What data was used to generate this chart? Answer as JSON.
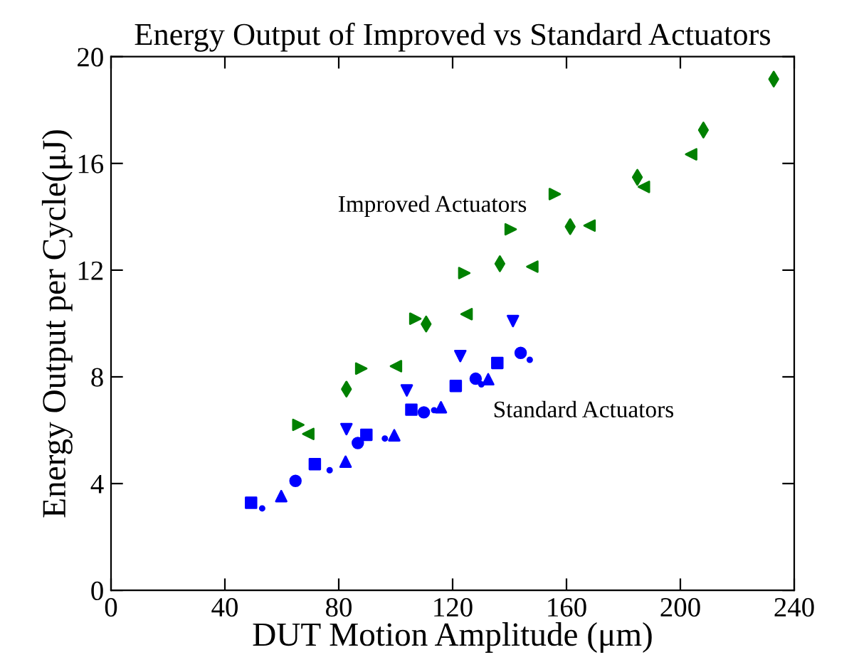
{
  "chart_data": {
    "type": "scatter",
    "title": "Energy Output of Improved vs Standard Actuators",
    "xlabel": "DUT Motion Amplitude (μm)",
    "ylabel": "Energy Output per Cycle(μJ)",
    "xlim": [
      0,
      240
    ],
    "xticks": [
      0,
      40,
      80,
      120,
      160,
      200,
      240
    ],
    "ylim": [
      0,
      20
    ],
    "yticks": [
      0,
      4,
      8,
      12,
      16,
      20
    ],
    "grid": false,
    "legend": false,
    "series": [
      {
        "color": "#0000ff",
        "marker": "square",
        "x": [
          49.2,
          71.6,
          89.7,
          105.5,
          121.1,
          135.7
        ],
        "values": [
          3.28,
          4.73,
          5.83,
          6.77,
          7.66,
          8.52
        ]
      },
      {
        "color": "#0000ff",
        "marker": "point",
        "x": [
          53.1,
          76.8,
          96.2,
          113.5,
          130.1,
          147.1
        ],
        "values": [
          3.07,
          4.5,
          5.69,
          6.75,
          7.72,
          8.64
        ]
      },
      {
        "color": "#0000ff",
        "marker": "triangle",
        "x": [
          59.8,
          82.4,
          99.5,
          115.9,
          132.5
        ],
        "values": [
          3.53,
          4.82,
          5.81,
          6.86,
          7.91
        ]
      },
      {
        "color": "#0000ff",
        "marker": "circle",
        "x": [
          64.8,
          86.7,
          109.9,
          128.1,
          143.9
        ],
        "values": [
          4.1,
          5.52,
          6.67,
          7.93,
          8.9
        ]
      },
      {
        "color": "#0000ff",
        "marker": "triangle_down",
        "x": [
          82.7,
          103.9,
          122.7,
          141.2
        ],
        "values": [
          6.04,
          7.49,
          8.78,
          10.09
        ]
      },
      {
        "color": "#008000",
        "marker": "triangle_right",
        "x": [
          65.8,
          87.9,
          106.9,
          124.1,
          140.4,
          155.9
        ],
        "values": [
          6.2,
          8.31,
          10.18,
          11.89,
          13.53,
          14.85
        ]
      },
      {
        "color": "#008000",
        "marker": "triangle_left",
        "x": [
          69.3,
          100.1,
          124.9,
          148.0,
          168.1,
          187.2,
          203.8
        ],
        "values": [
          5.86,
          8.4,
          10.35,
          12.13,
          13.67,
          15.12,
          16.34
        ]
      },
      {
        "color": "#008000",
        "marker": "diamond",
        "x": [
          82.7,
          110.7,
          136.6,
          161.3,
          184.9,
          208.1,
          232.8
        ],
        "values": [
          7.54,
          9.98,
          12.24,
          13.63,
          15.48,
          17.25,
          19.16
        ]
      }
    ],
    "annotations": [
      "Improved Actuators",
      "Standard Actuators"
    ]
  }
}
